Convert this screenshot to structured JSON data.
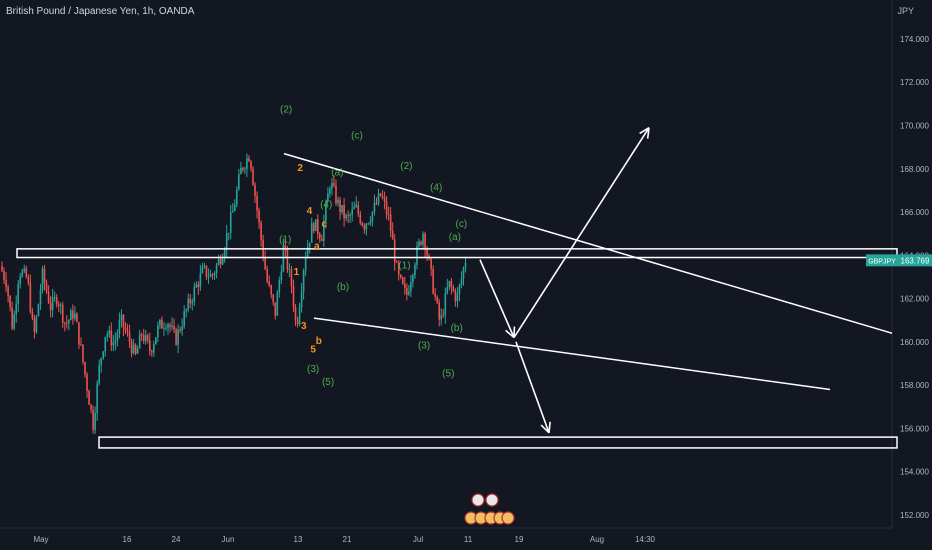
{
  "chart_data": {
    "type": "candlestick",
    "title": "British Pound / Japanese Yen, 1h, OANDA",
    "y_unit": "JPY",
    "symbol": "GBPJPY",
    "last_price": "163.769",
    "ylim": [
      151.4,
      175.8
    ],
    "y_ticks": [
      "174.000",
      "172.000",
      "170.000",
      "168.000",
      "166.000",
      "164.000",
      "162.000",
      "160.000",
      "158.000",
      "156.000",
      "154.000",
      "152.000"
    ],
    "x_ticks": [
      "May",
      "16",
      "24",
      "Jun",
      "13",
      "21",
      "Jul",
      "11",
      "19",
      "Aug",
      "14:30"
    ],
    "colors": {
      "up": "#26a69a",
      "down": "#ef5350",
      "annotation": "#ffffff",
      "wave_green": "#4caf50",
      "wave_orange": "#f7931a",
      "bg": "#131722"
    },
    "price_path": [
      {
        "t": 0.0,
        "p": 163.5
      },
      {
        "t": 0.03,
        "p": 162.8
      },
      {
        "t": 0.06,
        "p": 160.6
      },
      {
        "t": 0.09,
        "p": 163.3
      },
      {
        "t": 0.13,
        "p": 162.9
      },
      {
        "t": 0.16,
        "p": 160.2
      },
      {
        "t": 0.2,
        "p": 163.1
      },
      {
        "t": 0.24,
        "p": 161.6
      },
      {
        "t": 0.27,
        "p": 162.1
      },
      {
        "t": 0.31,
        "p": 160.8
      },
      {
        "t": 0.35,
        "p": 161.4
      },
      {
        "t": 0.38,
        "p": 159.8
      },
      {
        "t": 0.41,
        "p": 158.0
      },
      {
        "t": 0.44,
        "p": 156.2
      },
      {
        "t": 0.47,
        "p": 158.9
      },
      {
        "t": 0.5,
        "p": 160.5
      },
      {
        "t": 0.54,
        "p": 159.9
      },
      {
        "t": 0.57,
        "p": 161.0
      },
      {
        "t": 0.61,
        "p": 160.1
      },
      {
        "t": 0.64,
        "p": 159.3
      },
      {
        "t": 0.67,
        "p": 160.4
      },
      {
        "t": 0.71,
        "p": 159.6
      },
      {
        "t": 0.75,
        "p": 160.7
      },
      {
        "t": 0.79,
        "p": 161.0
      },
      {
        "t": 0.83,
        "p": 160.1
      },
      {
        "t": 0.87,
        "p": 161.2
      },
      {
        "t": 0.92,
        "p": 162.4
      },
      {
        "t": 0.96,
        "p": 163.3
      },
      {
        "t": 1.0,
        "p": 163.0
      },
      {
        "t": 1.05,
        "p": 164.1
      },
      {
        "t": 1.1,
        "p": 166.0
      },
      {
        "t": 1.14,
        "p": 168.0
      },
      {
        "t": 1.18,
        "p": 168.7
      },
      {
        "t": 1.22,
        "p": 165.7
      },
      {
        "t": 1.26,
        "p": 162.9
      },
      {
        "t": 1.3,
        "p": 161.3
      },
      {
        "t": 1.34,
        "p": 164.4
      },
      {
        "t": 1.38,
        "p": 162.5
      },
      {
        "t": 1.4,
        "p": 160.6
      },
      {
        "t": 1.44,
        "p": 163.9
      },
      {
        "t": 1.48,
        "p": 165.5
      },
      {
        "t": 1.52,
        "p": 164.9
      },
      {
        "t": 1.56,
        "p": 167.4
      },
      {
        "t": 1.6,
        "p": 166.3
      },
      {
        "t": 1.64,
        "p": 165.6
      },
      {
        "t": 1.68,
        "p": 166.2
      },
      {
        "t": 1.72,
        "p": 165.4
      },
      {
        "t": 1.76,
        "p": 166.0
      },
      {
        "t": 1.8,
        "p": 166.8
      },
      {
        "t": 1.84,
        "p": 165.6
      },
      {
        "t": 1.88,
        "p": 163.0
      },
      {
        "t": 1.92,
        "p": 162.1
      },
      {
        "t": 1.96,
        "p": 163.8
      },
      {
        "t": 2.0,
        "p": 165.1
      },
      {
        "t": 2.04,
        "p": 162.9
      },
      {
        "t": 2.08,
        "p": 160.8
      },
      {
        "t": 2.12,
        "p": 162.7
      },
      {
        "t": 2.16,
        "p": 162.0
      },
      {
        "t": 2.2,
        "p": 163.8
      }
    ],
    "last_candle_index_ratio": 0.4995,
    "wave_labels": [
      {
        "text": "(2)",
        "color": "green",
        "at": [
          0.307,
          170.6
        ]
      },
      {
        "text": "(c)",
        "color": "green",
        "at": [
          0.383,
          169.4
        ]
      },
      {
        "text": "2",
        "color": "orange",
        "at": [
          0.322,
          167.9
        ]
      },
      {
        "text": "(a)",
        "color": "green",
        "at": [
          0.362,
          167.7
        ]
      },
      {
        "text": "(2)",
        "color": "green",
        "at": [
          0.436,
          168.0
        ]
      },
      {
        "text": "(4)",
        "color": "green",
        "at": [
          0.468,
          167.0
        ]
      },
      {
        "text": "(4)",
        "color": "green",
        "at": [
          0.35,
          166.2
        ]
      },
      {
        "text": "4",
        "color": "orange",
        "at": [
          0.332,
          165.9
        ]
      },
      {
        "text": "c",
        "color": "orange",
        "at": [
          0.348,
          165.3
        ]
      },
      {
        "text": "(c)",
        "color": "green",
        "at": [
          0.495,
          165.3
        ]
      },
      {
        "text": "(a)",
        "color": "green",
        "at": [
          0.488,
          164.7
        ]
      },
      {
        "text": "(1)",
        "color": "green",
        "at": [
          0.306,
          164.6
        ]
      },
      {
        "text": "a",
        "color": "orange",
        "at": [
          0.34,
          164.3
        ]
      },
      {
        "text": "(1)",
        "color": "green",
        "at": [
          0.434,
          163.4
        ]
      },
      {
        "text": "1",
        "color": "orange",
        "at": [
          0.318,
          163.1
        ]
      },
      {
        "text": "(b)",
        "color": "green",
        "at": [
          0.368,
          162.4
        ]
      },
      {
        "text": "3",
        "color": "orange",
        "at": [
          0.326,
          160.6
        ]
      },
      {
        "text": "(b)",
        "color": "green",
        "at": [
          0.49,
          160.5
        ]
      },
      {
        "text": "b",
        "color": "orange",
        "at": [
          0.342,
          159.9
        ]
      },
      {
        "text": "(3)",
        "color": "green",
        "at": [
          0.455,
          159.7
        ]
      },
      {
        "text": "5",
        "color": "orange",
        "at": [
          0.336,
          159.5
        ]
      },
      {
        "text": "(3)",
        "color": "green",
        "at": [
          0.336,
          158.6
        ]
      },
      {
        "text": "(5)",
        "color": "green",
        "at": [
          0.352,
          158.0
        ]
      },
      {
        "text": "(5)",
        "color": "green",
        "at": [
          0.481,
          158.4
        ]
      }
    ]
  }
}
